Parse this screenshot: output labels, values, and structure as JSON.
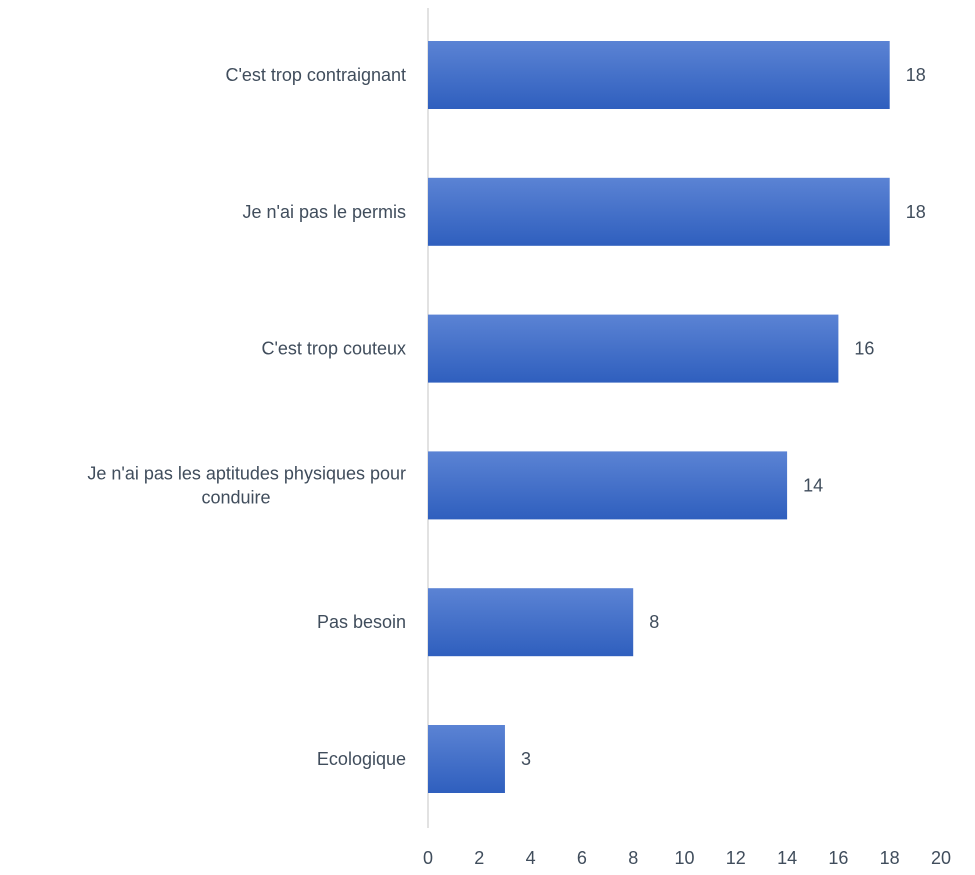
{
  "chart_data": {
    "type": "bar",
    "orientation": "horizontal",
    "title": "",
    "xlabel": "",
    "ylabel": "",
    "categories": [
      [
        "C'est trop contraignant"
      ],
      [
        "Je n'ai pas le permis"
      ],
      [
        "C'est trop couteux"
      ],
      [
        "Je n'ai pas les aptitudes physiques pour",
        "conduire"
      ],
      [
        "Pas besoin"
      ],
      [
        "Ecologique"
      ]
    ],
    "values": [
      18,
      18,
      16,
      14,
      8,
      3
    ],
    "xlim": [
      0,
      20
    ],
    "xticks": [
      "0",
      "2",
      "4",
      "6",
      "8",
      "10",
      "12",
      "14",
      "16",
      "18",
      "20"
    ],
    "grid": false,
    "legend": "none",
    "data_labels": true,
    "colors": {
      "bar_top": "#5b83d4",
      "bar_bottom": "#2f5fbe",
      "axis": "#d9d9d9",
      "text": "#404d5c"
    }
  }
}
